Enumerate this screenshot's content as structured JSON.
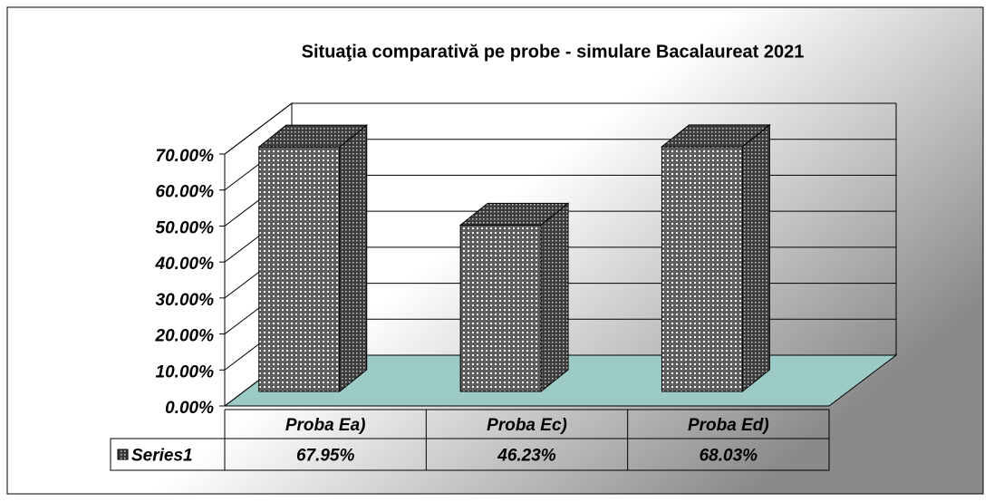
{
  "chart_data": {
    "type": "bar3d",
    "title": "Situaţia comparativă pe probe - simulare Bacalaureat 2021",
    "categories": [
      "Proba Ea)",
      "Proba Ec)",
      "Proba Ed)"
    ],
    "series": [
      {
        "name": "Series1",
        "color": "#6b6b6b",
        "values": [
          67.95,
          46.23,
          68.03
        ],
        "value_labels": [
          "67.95%",
          "46.23%",
          "68.03%"
        ]
      }
    ],
    "ylim": [
      0,
      70
    ],
    "yticks": [
      {
        "value": 0,
        "label": "0.00%"
      },
      {
        "value": 10,
        "label": "10.00%"
      },
      {
        "value": 20,
        "label": "20.00%"
      },
      {
        "value": 30,
        "label": "30.00%"
      },
      {
        "value": 40,
        "label": "40.00%"
      },
      {
        "value": 50,
        "label": "50.00%"
      },
      {
        "value": 60,
        "label": "60.00%"
      },
      {
        "value": 70,
        "label": "70.00%"
      }
    ],
    "grid": true,
    "floor_color": "#9ccbc6"
  }
}
